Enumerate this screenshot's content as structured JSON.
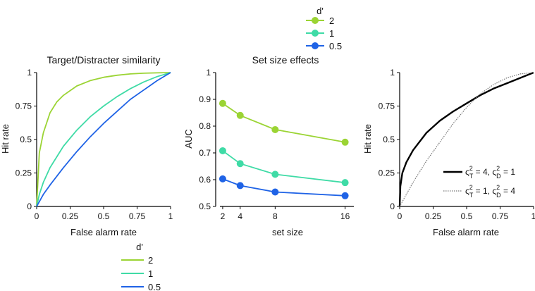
{
  "colors": {
    "d2": "#9bd434",
    "d1": "#3fdba6",
    "d05": "#1f63e6",
    "axis": "#000000"
  },
  "legend_top": {
    "title": "d'",
    "entries": [
      {
        "label": "2",
        "color": "#9bd434"
      },
      {
        "label": "1",
        "color": "#3fdba6"
      },
      {
        "label": "0.5",
        "color": "#1f63e6"
      }
    ]
  },
  "legend_bottom": {
    "title": "d'",
    "entries": [
      {
        "label": "2",
        "color": "#9bd434"
      },
      {
        "label": "1",
        "color": "#3fdba6"
      },
      {
        "label": "0.5",
        "color": "#1f63e6"
      }
    ]
  },
  "chart_data": [
    {
      "id": "roc",
      "type": "line",
      "title": "Target/Distracter similarity",
      "xlabel": "False alarm rate",
      "ylabel": "Hit rate",
      "xlim": [
        0,
        1
      ],
      "ylim": [
        0,
        1
      ],
      "xticks": [
        "0",
        "0.25",
        "0.5",
        "0.75",
        "1"
      ],
      "yticks": [
        "0",
        "0.25",
        "0.5",
        "0.75",
        "1"
      ],
      "series": [
        {
          "name": "2",
          "color": "#9bd434",
          "x": [
            0,
            0.02,
            0.05,
            0.1,
            0.15,
            0.2,
            0.3,
            0.4,
            0.5,
            0.6,
            0.7,
            0.8,
            0.9,
            1
          ],
          "y": [
            0,
            0.4,
            0.55,
            0.7,
            0.78,
            0.83,
            0.9,
            0.94,
            0.965,
            0.98,
            0.99,
            0.995,
            0.998,
            1
          ]
        },
        {
          "name": "1",
          "color": "#3fdba6",
          "x": [
            0,
            0.02,
            0.05,
            0.1,
            0.2,
            0.3,
            0.4,
            0.5,
            0.6,
            0.7,
            0.8,
            0.9,
            1
          ],
          "y": [
            0,
            0.09,
            0.18,
            0.29,
            0.45,
            0.57,
            0.67,
            0.75,
            0.82,
            0.88,
            0.93,
            0.97,
            1
          ]
        },
        {
          "name": "0.5",
          "color": "#1f63e6",
          "x": [
            0,
            0.05,
            0.1,
            0.2,
            0.3,
            0.4,
            0.5,
            0.6,
            0.7,
            0.8,
            0.9,
            1
          ],
          "y": [
            0,
            0.09,
            0.16,
            0.29,
            0.41,
            0.52,
            0.62,
            0.71,
            0.8,
            0.87,
            0.94,
            1
          ]
        }
      ]
    },
    {
      "id": "setsize",
      "type": "line",
      "title": "Set size effects",
      "xlabel": "set size",
      "ylabel": "AUC",
      "xlim": [
        1.2,
        17
      ],
      "ylim": [
        0.5,
        1
      ],
      "xticks": [
        2,
        4,
        8,
        16
      ],
      "yticks": [
        "0.5",
        "0.6",
        "0.7",
        "0.8",
        "0.9",
        "1"
      ],
      "series": [
        {
          "name": "2",
          "color": "#9bd434",
          "x": [
            2,
            4,
            8,
            16
          ],
          "y": [
            0.885,
            0.84,
            0.787,
            0.74
          ]
        },
        {
          "name": "1",
          "color": "#3fdba6",
          "x": [
            2,
            4,
            8,
            16
          ],
          "y": [
            0.708,
            0.66,
            0.62,
            0.589
          ]
        },
        {
          "name": "0.5",
          "color": "#1f63e6",
          "x": [
            2,
            4,
            8,
            16
          ],
          "y": [
            0.603,
            0.578,
            0.554,
            0.54
          ]
        }
      ]
    },
    {
      "id": "variance",
      "type": "line",
      "xlabel": "False alarm rate",
      "ylabel": "Hit rate",
      "xlim": [
        0,
        1
      ],
      "ylim": [
        0,
        1
      ],
      "xticks": [
        "0",
        "0.25",
        "0.5",
        "0.75",
        "1"
      ],
      "yticks": [
        "0",
        "0.25",
        "0.5",
        "0.75",
        "1"
      ],
      "series": [
        {
          "style": "solid",
          "color": "#000000",
          "label_parts": [
            "ς",
            "T",
            "2",
            "= 4,",
            "ς",
            "D",
            "2",
            "= 1"
          ],
          "x": [
            0,
            0.005,
            0.02,
            0.05,
            0.1,
            0.2,
            0.3,
            0.4,
            0.5,
            0.6,
            0.7,
            0.8,
            0.9,
            1
          ],
          "y": [
            0,
            0.15,
            0.25,
            0.33,
            0.42,
            0.55,
            0.64,
            0.71,
            0.77,
            0.83,
            0.88,
            0.92,
            0.96,
            1
          ]
        },
        {
          "style": "dotted",
          "color": "#777777",
          "label_parts": [
            "ς",
            "T",
            "2",
            "= 1,",
            "ς",
            "D",
            "2",
            "= 4"
          ],
          "x": [
            0,
            0.05,
            0.1,
            0.2,
            0.3,
            0.4,
            0.5,
            0.6,
            0.7,
            0.8,
            0.9,
            1
          ],
          "y": [
            0,
            0.09,
            0.18,
            0.34,
            0.48,
            0.62,
            0.74,
            0.84,
            0.91,
            0.96,
            0.99,
            1
          ]
        }
      ]
    }
  ]
}
